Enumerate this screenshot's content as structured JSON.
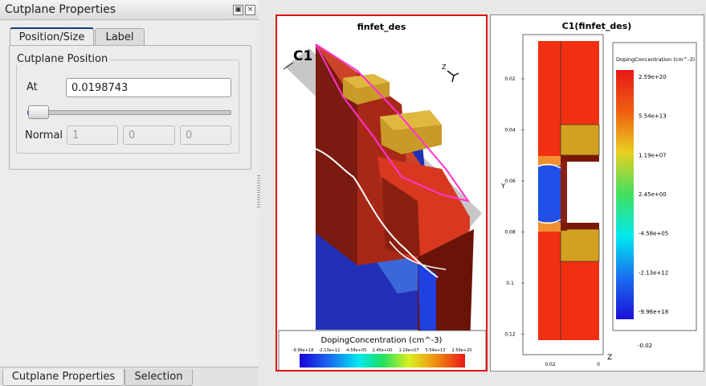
{
  "panel": {
    "title": "Cutplane Properties",
    "float_icon": "float-icon",
    "close_icon": "close-icon",
    "tabs": [
      {
        "label": "Position/Size",
        "active": true
      },
      {
        "label": "Label",
        "active": false
      }
    ],
    "group_title": "Cutplane Position",
    "at_label": "At",
    "at_value": "0.0198743",
    "slider_fraction": 0.05,
    "normal_label": "Normal",
    "normal_values": [
      "1",
      "0",
      "0"
    ],
    "bottom_tabs": [
      {
        "label": "Cutplane Properties",
        "active": true
      },
      {
        "label": "Selection",
        "active": false
      }
    ]
  },
  "view3d": {
    "title": "finfet_des",
    "cutplane_label": "C1",
    "axis_z": "Z",
    "legend_title": "DopingConcentration (cm^-3)",
    "legend_ticks": [
      "-9.96e+18",
      "-2.13e+12",
      "-4.58e+05",
      "2.45e+00",
      "1.19e+07",
      "5.54e+13",
      "2.59e+20"
    ]
  },
  "view2d": {
    "title": "C1(finfet_des)",
    "y_axis_label": "Y",
    "x_axis_label": "Z",
    "y_ticks": [
      "0.02",
      "0.04",
      "0.06",
      "0.08",
      "0.1",
      "0.12"
    ],
    "x_ticks": [
      "0.02",
      "0"
    ],
    "legend_title": "DopingConcentration (cm^-3)",
    "legend_ticks": [
      "2.59e+20",
      "5.54e+13",
      "1.19e+07",
      "2.45e+00",
      "-4.58e+05",
      "-2.13e+12",
      "-9.96e+18"
    ],
    "legend_axis_tick": "-0.02"
  },
  "colors": {
    "accent": "#1c3b7c",
    "active_view_border": "#e01010",
    "highlight": "#ff33cc",
    "doping_high": "#e8301a",
    "doping_low": "#1a3cc8",
    "gate": "#c8a020"
  }
}
